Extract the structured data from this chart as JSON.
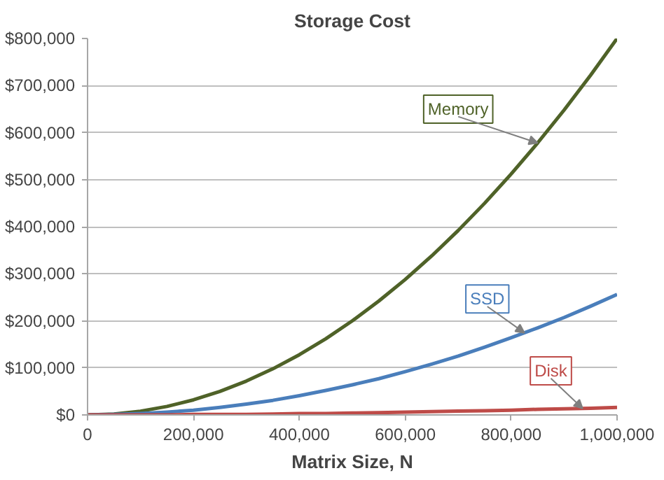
{
  "chart_data": {
    "type": "line",
    "title": "Storage Cost",
    "xlabel": "Matrix Size, N",
    "x": [
      0,
      50000,
      100000,
      150000,
      200000,
      250000,
      300000,
      350000,
      400000,
      450000,
      500000,
      550000,
      600000,
      650000,
      700000,
      750000,
      800000,
      850000,
      900000,
      950000,
      1000000
    ],
    "series": [
      {
        "name": "Memory",
        "color": "#4f6228",
        "values": [
          0,
          2000,
          8000,
          18000,
          32000,
          50000,
          72000,
          98000,
          128000,
          162000,
          200000,
          242000,
          288000,
          338000,
          392000,
          450000,
          512000,
          578000,
          648000,
          722000,
          800000
        ]
      },
      {
        "name": "SSD",
        "color": "#4a7ebb",
        "values": [
          0,
          1000,
          3000,
          6000,
          10000,
          16000,
          23000,
          31000,
          41000,
          52000,
          64000,
          77000,
          92000,
          108000,
          125000,
          144000,
          164000,
          185000,
          207000,
          231000,
          256000
        ]
      },
      {
        "name": "Disk",
        "color": "#be4b48",
        "values": [
          0,
          0,
          0,
          0,
          1000,
          1000,
          1000,
          2000,
          3000,
          3000,
          4000,
          5000,
          6000,
          7000,
          8000,
          9000,
          10000,
          12000,
          13000,
          14000,
          16000
        ]
      }
    ],
    "xlim": [
      0,
      1000000
    ],
    "ylim": [
      0,
      800000
    ],
    "xticks": [
      {
        "value": 0,
        "label": "0"
      },
      {
        "value": 200000,
        "label": "200,000"
      },
      {
        "value": 400000,
        "label": "400,000"
      },
      {
        "value": 600000,
        "label": "600,000"
      },
      {
        "value": 800000,
        "label": "800,000"
      },
      {
        "value": 1000000,
        "label": "1,000,000"
      }
    ],
    "yticks": [
      {
        "value": 0,
        "label": "$0"
      },
      {
        "value": 100000,
        "label": "$100,000"
      },
      {
        "value": 200000,
        "label": "$200,000"
      },
      {
        "value": 300000,
        "label": "$300,000"
      },
      {
        "value": 400000,
        "label": "$400,000"
      },
      {
        "value": 500000,
        "label": "$500,000"
      },
      {
        "value": 600000,
        "label": "$600,000"
      },
      {
        "value": 700000,
        "label": "$700,000"
      },
      {
        "value": 800000,
        "label": "$800,000"
      }
    ],
    "grid": "y",
    "legend": false,
    "marker": "none",
    "line_style": "solid"
  }
}
